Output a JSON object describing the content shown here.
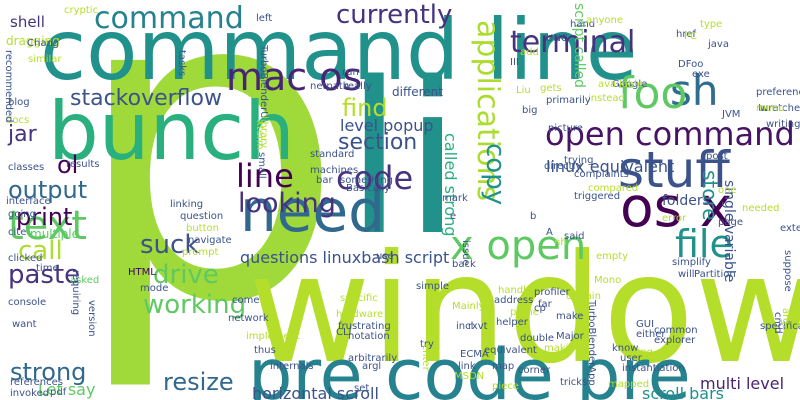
{
  "image_type": "word cloud",
  "background": "#ffffff",
  "palette": [
    "#440154",
    "#3b528b",
    "#21918c",
    "#5ec962",
    "#b5de2b"
  ],
  "words": [
    {
      "text": "p",
      "color": "#9fda3a",
      "rank": 1
    },
    {
      "text": "window",
      "color": "#b5de2b",
      "rank": 2
    },
    {
      "text": "command line",
      "color": "#21918c",
      "rank": 3
    },
    {
      "text": "li",
      "color": "#21918c",
      "rank": 4
    },
    {
      "text": "bunch",
      "color": "#2ab07f",
      "rank": 5
    },
    {
      "text": "pre code pre",
      "color": "#26828e",
      "rank": 6
    },
    {
      "text": "stuff",
      "color": "#3b528b",
      "rank": 7
    },
    {
      "text": "need",
      "color": "#31688e",
      "rank": 8
    },
    {
      "text": "os x",
      "color": "#440154",
      "rank": 9
    },
    {
      "text": "open command",
      "color": "#471365",
      "rank": 10
    },
    {
      "text": "sh",
      "color": "#2e6d8e",
      "rank": 11
    },
    {
      "text": "foo",
      "color": "#5ec962",
      "rank": 12
    },
    {
      "text": "mac os",
      "color": "#482475",
      "rank": 13
    },
    {
      "text": "command",
      "color": "#26828e",
      "rank": 14
    },
    {
      "text": "terminal",
      "color": "#46327e",
      "rank": 15
    },
    {
      "text": "line",
      "color": "#440154",
      "rank": 16
    },
    {
      "text": "code",
      "color": "#46327e",
      "rank": 17
    },
    {
      "text": "text",
      "color": "#5ec962",
      "rank": 18
    },
    {
      "text": "x open",
      "color": "#5ec962",
      "rank": 19
    },
    {
      "text": "file",
      "color": "#21918c",
      "rank": 20
    },
    {
      "text": "applications",
      "color": "#addc30",
      "rank": 21
    },
    {
      "text": "currently",
      "color": "#46327e",
      "rank": 22
    },
    {
      "text": "stackoverflow",
      "color": "#3b528b",
      "rank": 23
    },
    {
      "text": "copy",
      "color": "#21918c",
      "rank": 24
    },
    {
      "text": "looking",
      "color": "#46327e",
      "rank": 25
    },
    {
      "text": "output",
      "color": "#31688e",
      "rank": 26
    },
    {
      "text": "working",
      "color": "#5ec962",
      "rank": 27
    },
    {
      "text": "drive",
      "color": "#5ec962",
      "rank": 28
    },
    {
      "text": "suck",
      "color": "#3b528b",
      "rank": 29
    },
    {
      "text": "call",
      "color": "#addc30",
      "rank": 30
    },
    {
      "text": "paste",
      "color": "#46327e",
      "rank": 31
    },
    {
      "text": "print",
      "color": "#440154",
      "rank": 32
    },
    {
      "text": "strong",
      "color": "#31688e",
      "rank": 33
    },
    {
      "text": "resize",
      "color": "#31688e",
      "rank": 34
    },
    {
      "text": "find",
      "color": "#b5de2b",
      "rank": 35
    },
    {
      "text": "section",
      "color": "#3b528b",
      "rank": 36
    },
    {
      "text": "store",
      "color": "#21918c",
      "rank": 37
    },
    {
      "text": "jar",
      "color": "#46327e",
      "rank": 38
    },
    {
      "text": "ol",
      "color": "#440154",
      "rank": 39
    },
    {
      "text": "shell",
      "color": "#46327e",
      "rank": 40
    },
    {
      "text": "questions linuxbash script",
      "color": "#3b528b",
      "rank": 41
    },
    {
      "text": "horizontal scroll",
      "color": "#3b528b",
      "rank": 42
    },
    {
      "text": "scroll bars",
      "color": "#21918c",
      "rank": 43
    },
    {
      "text": "multi level",
      "color": "#482475",
      "rank": 44
    },
    {
      "text": "level popup",
      "color": "#3b528b",
      "rank": 45
    },
    {
      "text": "linux equivalent",
      "color": "#3b528b",
      "rank": 46
    },
    {
      "text": "called strong",
      "color": "#2ab07f",
      "rank": 47
    },
    {
      "text": "script called",
      "color": "#5ec962",
      "rank": 48
    },
    {
      "text": "single variable",
      "color": "#3b528b",
      "rank": 49
    },
    {
      "text": "folders",
      "color": "#3b528b",
      "rank": 50
    },
    {
      "text": "Let say",
      "color": "#5ec962",
      "rank": 51
    },
    {
      "text": "cryptic",
      "color": "#b5de2b",
      "rank": 52
    },
    {
      "text": "dragging",
      "color": "#b5de2b",
      "rank": 53
    },
    {
      "text": "Chang",
      "color": "#3b528b",
      "rank": 54
    },
    {
      "text": "similar",
      "color": "#b5de2b",
      "rank": 55
    },
    {
      "text": "blog",
      "color": "#3b528b",
      "rank": 56
    },
    {
      "text": "docs",
      "color": "#b5de2b",
      "rank": 57
    },
    {
      "text": "recommended",
      "color": "#3b528b",
      "rank": 58
    },
    {
      "text": "classes",
      "color": "#3b528b",
      "rank": 59
    },
    {
      "text": "interface",
      "color": "#3b528b",
      "rank": 60
    },
    {
      "text": "going",
      "color": "#3b528b",
      "rank": 61
    },
    {
      "text": "cite",
      "color": "#3b528b",
      "rank": 62
    },
    {
      "text": "multiple",
      "color": "#5ec962",
      "rank": 63
    },
    {
      "text": "clicked",
      "color": "#3b528b",
      "rank": 64
    },
    {
      "text": "console",
      "color": "#3b528b",
      "rank": 65
    },
    {
      "text": "want",
      "color": "#3b528b",
      "rank": 66
    },
    {
      "text": "references",
      "color": "#3b528b",
      "rank": 67
    },
    {
      "text": "invoked",
      "color": "#3b528b",
      "rank": 68
    },
    {
      "text": "pdf",
      "color": "#3b528b",
      "rank": 69
    },
    {
      "text": "results",
      "color": "#3b528b",
      "rank": 70
    },
    {
      "text": "time",
      "color": "#3b528b",
      "rank": 71
    },
    {
      "text": "asked",
      "color": "#5ec962",
      "rank": 72
    },
    {
      "text": "requiring",
      "color": "#3b528b",
      "rank": 73
    },
    {
      "text": "version",
      "color": "#3b528b",
      "rank": 74
    },
    {
      "text": "left",
      "color": "#3b528b",
      "rank": 75
    },
    {
      "text": "tasks",
      "color": "#3b528b",
      "rank": 76
    },
    {
      "text": "TurboBlenderUI",
      "color": "#3b528b",
      "rank": 77
    },
    {
      "text": "netpath",
      "color": "#3b528b",
      "rank": 78
    },
    {
      "text": "really",
      "color": "#3b528b",
      "rank": 79
    },
    {
      "text": "run",
      "color": "#3b528b",
      "rank": 80
    },
    {
      "text": "different",
      "color": "#3b528b",
      "rank": 81
    },
    {
      "text": "xterm",
      "color": "#b5de2b",
      "rank": 82
    },
    {
      "text": "library",
      "color": "#b5de2b",
      "rank": 83
    },
    {
      "text": "small",
      "color": "#3b528b",
      "rank": 84
    },
    {
      "text": "standard",
      "color": "#3b528b",
      "rank": 85
    },
    {
      "text": "machines",
      "color": "#3b528b",
      "rank": 86
    },
    {
      "text": "something",
      "color": "#3b528b",
      "rank": 87
    },
    {
      "text": "Basically",
      "color": "#3b528b",
      "rank": 88
    },
    {
      "text": "bar",
      "color": "#3b528b",
      "rank": 89
    },
    {
      "text": "linking",
      "color": "#3b528b",
      "rank": 90
    },
    {
      "text": "question",
      "color": "#3b528b",
      "rank": 91
    },
    {
      "text": "button",
      "color": "#b5de2b",
      "rank": 92
    },
    {
      "text": "navigate",
      "color": "#3b528b",
      "rank": 93
    },
    {
      "text": "prompt",
      "color": "#b5de2b",
      "rank": 94
    },
    {
      "text": "HTML",
      "color": "#440154",
      "rank": 95
    },
    {
      "text": "mode",
      "color": "#3b528b",
      "rank": 96
    },
    {
      "text": "come",
      "color": "#3b528b",
      "rank": 97
    },
    {
      "text": "network",
      "color": "#3b528b",
      "rank": 98
    },
    {
      "text": "implement",
      "color": "#b5de2b",
      "rank": 99
    },
    {
      "text": "thus",
      "color": "#3b528b",
      "rank": 100
    },
    {
      "text": "internals",
      "color": "#3b528b",
      "rank": 101
    },
    {
      "text": "notation",
      "color": "#3b528b",
      "rank": 102
    },
    {
      "text": "arbitrarily",
      "color": "#3b528b",
      "rank": 103
    },
    {
      "text": "argl",
      "color": "#3b528b",
      "rank": 104
    },
    {
      "text": "set",
      "color": "#3b528b",
      "rank": 105
    },
    {
      "text": "frustrating",
      "color": "#3b528b",
      "rank": 106
    },
    {
      "text": "hardware",
      "color": "#b5de2b",
      "rank": 107
    },
    {
      "text": "specific",
      "color": "#b5de2b",
      "rank": 108
    },
    {
      "text": "simple",
      "color": "#3b528b",
      "rank": 109
    },
    {
      "text": "CLI",
      "color": "#3b528b",
      "rank": 110
    },
    {
      "text": "back",
      "color": "#3b528b",
      "rank": 111
    },
    {
      "text": "Mainly",
      "color": "#b5de2b",
      "rank": 112
    },
    {
      "text": "issue",
      "color": "#3b528b",
      "rank": 113
    },
    {
      "text": "incl",
      "color": "#3b528b",
      "rank": 114
    },
    {
      "text": "ECMA",
      "color": "#3b528b",
      "rank": 115
    },
    {
      "text": "link",
      "color": "#3b528b",
      "rank": 116
    },
    {
      "text": "MSDN",
      "color": "#b5de2b",
      "rank": 117
    },
    {
      "text": "try",
      "color": "#3b528b",
      "rank": 118
    },
    {
      "text": "enter",
      "color": "#b5de2b",
      "rank": 119
    },
    {
      "text": "equivalent",
      "color": "#3b528b",
      "rank": 120
    },
    {
      "text": "rxvt",
      "color": "#3b528b",
      "rank": 121
    },
    {
      "text": "map",
      "color": "#3b528b",
      "rank": 122
    },
    {
      "text": "piece",
      "color": "#b5de2b",
      "rank": 123
    },
    {
      "text": "tricks",
      "color": "#3b528b",
      "rank": 124
    },
    {
      "text": "corner",
      "color": "#3b528b",
      "rank": 125
    },
    {
      "text": "Major",
      "color": "#3b528b",
      "rank": 126
    },
    {
      "text": "make",
      "color": "#3b528b",
      "rank": 127
    },
    {
      "text": "far",
      "color": "#3b528b",
      "rank": 128
    },
    {
      "text": "prone",
      "color": "#b5de2b",
      "rank": 129
    },
    {
      "text": "cp",
      "color": "#3b528b",
      "rank": 130
    },
    {
      "text": "certain",
      "color": "#b5de2b",
      "rank": 131
    },
    {
      "text": "TurboBlenderApp",
      "color": "#3b528b",
      "rank": 132
    },
    {
      "text": "helper",
      "color": "#3b528b",
      "rank": 133
    },
    {
      "text": "double",
      "color": "#3b528b",
      "rank": 134
    },
    {
      "text": "Mono",
      "color": "#b5de2b",
      "rank": 135
    },
    {
      "text": "empty",
      "color": "#b5de2b",
      "rank": 136
    },
    {
      "text": "profiler",
      "color": "#3b528b",
      "rank": 137
    },
    {
      "text": "handle",
      "color": "#b5de2b",
      "rank": 138
    },
    {
      "text": "address",
      "color": "#3b528b",
      "rank": 139
    },
    {
      "text": "know",
      "color": "#3b528b",
      "rank": 140
    },
    {
      "text": "user",
      "color": "#3b528b",
      "rank": 141
    },
    {
      "text": "instantiation",
      "color": "#3b528b",
      "rank": 142
    },
    {
      "text": "mapped",
      "color": "#b5de2b",
      "rank": 143
    },
    {
      "text": "using",
      "color": "#b5de2b",
      "rank": 144
    },
    {
      "text": "GUI",
      "color": "#3b528b",
      "rank": 145
    },
    {
      "text": "either",
      "color": "#3b528b",
      "rank": 146
    },
    {
      "text": "explorer",
      "color": "#3b528b",
      "rank": 147
    },
    {
      "text": "common",
      "color": "#3b528b",
      "rank": 148
    },
    {
      "text": "Partition",
      "color": "#3b528b",
      "rank": 149
    },
    {
      "text": "simplify",
      "color": "#3b528b",
      "rank": 150
    },
    {
      "text": "will",
      "color": "#3b528b",
      "rank": 151
    },
    {
      "text": "specification",
      "color": "#3b528b",
      "rank": 152
    },
    {
      "text": "cmd",
      "color": "#3b528b",
      "rank": 153
    },
    {
      "text": "arg2",
      "color": "#b5de2b",
      "rank": 154
    },
    {
      "text": "suppose",
      "color": "#3b528b",
      "rank": 155
    },
    {
      "text": "external",
      "color": "#3b528b",
      "rank": 156
    },
    {
      "text": "writing",
      "color": "#3b528b",
      "rank": 157
    },
    {
      "text": "turn",
      "color": "#3b528b",
      "rank": 158
    },
    {
      "text": "preference",
      "color": "#3b528b",
      "rank": 159
    },
    {
      "text": "wretched",
      "color": "#3b528b",
      "rank": 160
    },
    {
      "text": "JVM",
      "color": "#3b528b",
      "rank": 161
    },
    {
      "text": "menu",
      "color": "#b5de2b",
      "rank": 162
    },
    {
      "text": "DFoo",
      "color": "#3b528b",
      "rank": 163
    },
    {
      "text": "type",
      "color": "#b5de2b",
      "rank": 164
    },
    {
      "text": "java",
      "color": "#3b528b",
      "rank": 165
    },
    {
      "text": "exe",
      "color": "#3b528b",
      "rank": 166
    },
    {
      "text": "Google",
      "color": "#3b528b",
      "rank": 167
    },
    {
      "text": "instead",
      "color": "#b5de2b",
      "rank": 168
    },
    {
      "text": "post",
      "color": "#3b528b",
      "rank": 169
    },
    {
      "text": "one",
      "color": "#b5de2b",
      "rank": 170
    },
    {
      "text": "needed",
      "color": "#b5de2b",
      "rank": 171
    },
    {
      "text": "page",
      "color": "#3b528b",
      "rank": 172
    },
    {
      "text": "error",
      "color": "#b5de2b",
      "rank": 173
    },
    {
      "text": "said",
      "color": "#3b528b",
      "rank": 174
    },
    {
      "text": "triggered",
      "color": "#3b528b",
      "rank": 175
    },
    {
      "text": "compared",
      "color": "#b5de2b",
      "rank": 176
    },
    {
      "text": "trying",
      "color": "#3b528b",
      "rank": 177
    },
    {
      "text": "complaints",
      "color": "#3b528b",
      "rank": 178
    },
    {
      "text": "directly",
      "color": "#3b528b",
      "rank": 179
    },
    {
      "text": "picture",
      "color": "#3b528b",
      "rank": 180
    },
    {
      "text": "available",
      "color": "#b5de2b",
      "rank": 181
    },
    {
      "text": "primarily",
      "color": "#3b528b",
      "rank": 182
    },
    {
      "text": "big",
      "color": "#3b528b",
      "rank": 183
    },
    {
      "text": "gets",
      "color": "#b5de2b",
      "rank": 184
    },
    {
      "text": "Liu",
      "color": "#b5de2b",
      "rank": 185
    },
    {
      "text": "III",
      "color": "#3b528b",
      "rank": 186
    },
    {
      "text": "add",
      "color": "#b5de2b",
      "rank": 187
    },
    {
      "text": "UNC",
      "color": "#3b528b",
      "rank": 188
    },
    {
      "text": "hand",
      "color": "#3b528b",
      "rank": 189
    },
    {
      "text": "href",
      "color": "#3b528b",
      "rank": 190
    },
    {
      "text": "PC",
      "color": "#b5de2b",
      "rank": 191
    },
    {
      "text": "anyone",
      "color": "#b5de2b",
      "rank": 192
    },
    {
      "text": "making",
      "color": "#b5de2b",
      "rank": 193
    },
    {
      "text": "use",
      "color": "#3b528b",
      "rank": 194
    },
    {
      "text": "mark",
      "color": "#3b528b",
      "rank": 195
    },
    {
      "text": "e",
      "color": "#3b528b",
      "rank": 196
    },
    {
      "text": "b",
      "color": "#3b528b",
      "rank": 197
    },
    {
      "text": "A",
      "color": "#3b528b",
      "rank": 198
    },
    {
      "text": "nh",
      "color": "#b5de2b",
      "rank": 199
    }
  ]
}
